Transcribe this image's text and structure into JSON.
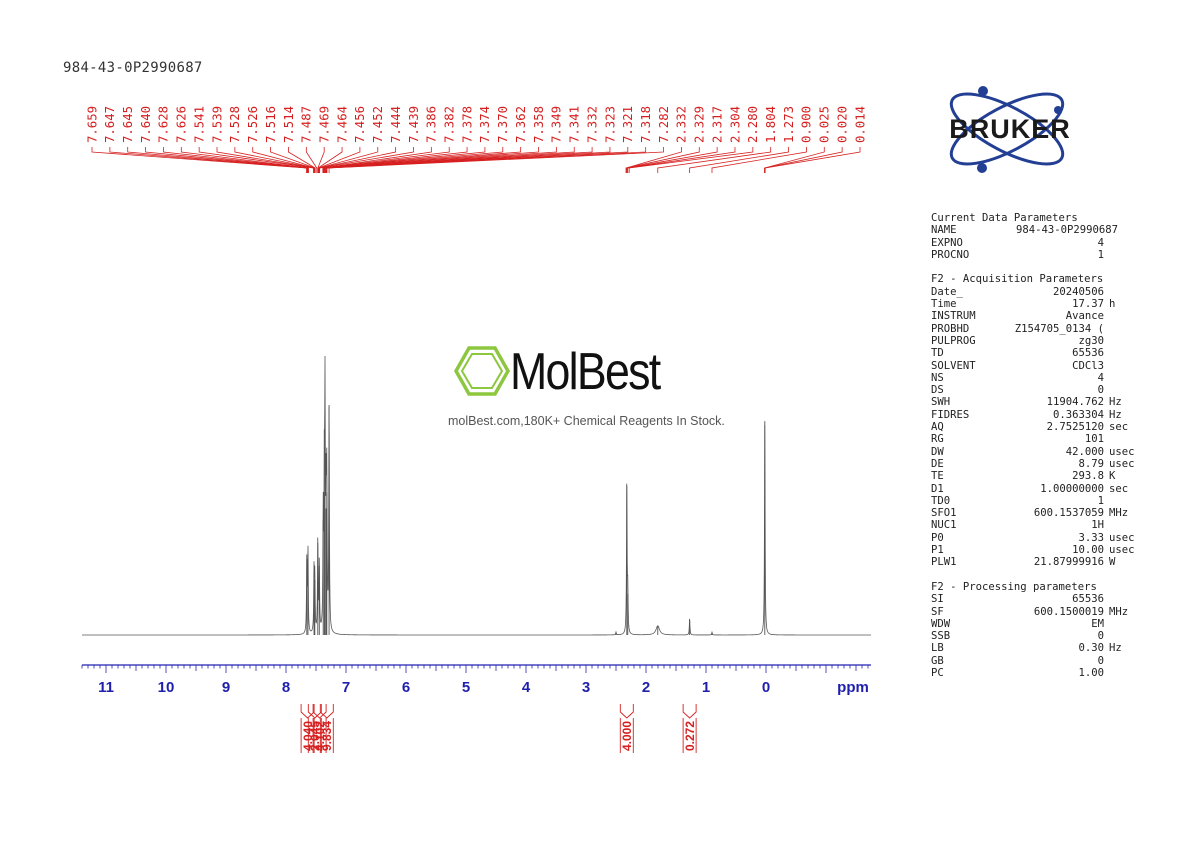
{
  "sample_id": "984-43-0P2990687",
  "logo": {
    "text": "BRUKER",
    "color": "#233f94",
    "accent": "#233f94"
  },
  "watermark": {
    "brand": "MolBest",
    "tagline": "molBest.com,180K+ Chemical Reagents In Stock.",
    "icon": "benzene-ring-icon",
    "icon_color": "#8dc63f"
  },
  "parameters": [
    {
      "title": "Current Data Parameters",
      "rows": [
        {
          "k": "NAME",
          "v": "984-43-0P2990687",
          "u": ""
        },
        {
          "k": "EXPNO",
          "v": "4",
          "u": ""
        },
        {
          "k": "PROCNO",
          "v": "1",
          "u": ""
        }
      ]
    },
    {
      "title": "F2 - Acquisition Parameters",
      "rows": [
        {
          "k": "Date_",
          "v": "20240506",
          "u": ""
        },
        {
          "k": "Time",
          "v": "17.37",
          "u": "h"
        },
        {
          "k": "INSTRUM",
          "v": "Avance",
          "u": ""
        },
        {
          "k": "PROBHD",
          "v": "Z154705_0134 (",
          "u": ""
        },
        {
          "k": "PULPROG",
          "v": "zg30",
          "u": ""
        },
        {
          "k": "TD",
          "v": "65536",
          "u": ""
        },
        {
          "k": "SOLVENT",
          "v": "CDCl3",
          "u": ""
        },
        {
          "k": "NS",
          "v": "4",
          "u": ""
        },
        {
          "k": "DS",
          "v": "0",
          "u": ""
        },
        {
          "k": "SWH",
          "v": "11904.762",
          "u": "Hz"
        },
        {
          "k": "FIDRES",
          "v": "0.363304",
          "u": "Hz"
        },
        {
          "k": "AQ",
          "v": "2.7525120",
          "u": "sec"
        },
        {
          "k": "RG",
          "v": "101",
          "u": ""
        },
        {
          "k": "DW",
          "v": "42.000",
          "u": "usec"
        },
        {
          "k": "DE",
          "v": "8.79",
          "u": "usec"
        },
        {
          "k": "TE",
          "v": "293.8",
          "u": "K"
        },
        {
          "k": "D1",
          "v": "1.00000000",
          "u": "sec"
        },
        {
          "k": "TD0",
          "v": "1",
          "u": ""
        },
        {
          "k": "SFO1",
          "v": "600.1537059",
          "u": "MHz"
        },
        {
          "k": "NUC1",
          "v": "1H",
          "u": ""
        },
        {
          "k": "P0",
          "v": "3.33",
          "u": "usec"
        },
        {
          "k": "P1",
          "v": "10.00",
          "u": "usec"
        },
        {
          "k": "PLW1",
          "v": "21.87999916",
          "u": "W"
        }
      ]
    },
    {
      "title": "F2 - Processing parameters",
      "rows": [
        {
          "k": "SI",
          "v": "65536",
          "u": ""
        },
        {
          "k": "SF",
          "v": "600.1500019",
          "u": "MHz"
        },
        {
          "k": "WDW",
          "v": "EM",
          "u": ""
        },
        {
          "k": "SSB",
          "v": "0",
          "u": ""
        },
        {
          "k": "LB",
          "v": "0.30",
          "u": "Hz"
        },
        {
          "k": "GB",
          "v": "0",
          "u": ""
        },
        {
          "k": "PC",
          "v": "1.00",
          "u": ""
        }
      ]
    }
  ],
  "chart_data": {
    "type": "line",
    "xlabel": "ppm",
    "xlim": [
      11.4,
      -1.75
    ],
    "x_reversed": true,
    "x_ticks": [
      11,
      10,
      9,
      8,
      7,
      6,
      5,
      4,
      3,
      2,
      1,
      0
    ],
    "colors": {
      "spectrum": "#555555",
      "axis": "#2323b4",
      "tick_label": "#1f1fae",
      "peak_label": "#d62020",
      "integral": "#d62020"
    },
    "peak_labels": [
      "7.659",
      "7.647",
      "7.645",
      "7.640",
      "7.628",
      "7.626",
      "7.541",
      "7.539",
      "7.528",
      "7.526",
      "7.516",
      "7.514",
      "7.487",
      "7.469",
      "7.464",
      "7.456",
      "7.452",
      "7.444",
      "7.439",
      "7.386",
      "7.382",
      "7.378",
      "7.374",
      "7.370",
      "7.362",
      "7.358",
      "7.349",
      "7.341",
      "7.332",
      "7.323",
      "7.321",
      "7.318",
      "7.282",
      "2.332",
      "2.329",
      "2.317",
      "2.304",
      "2.280",
      "1.804",
      "1.273",
      "0.900",
      "0.025",
      "0.020",
      "0.014"
    ],
    "peaks": [
      {
        "x": 7.653,
        "h": 0.33
      },
      {
        "x": 7.634,
        "h": 0.36
      },
      {
        "x": 7.533,
        "h": 0.27
      },
      {
        "x": 7.52,
        "h": 0.24
      },
      {
        "x": 7.47,
        "h": 0.4
      },
      {
        "x": 7.445,
        "h": 0.3
      },
      {
        "x": 7.38,
        "h": 0.5
      },
      {
        "x": 7.362,
        "h": 0.62
      },
      {
        "x": 7.35,
        "h": 0.98
      },
      {
        "x": 7.332,
        "h": 0.55
      },
      {
        "x": 7.32,
        "h": 0.62
      },
      {
        "x": 7.282,
        "h": 1.0
      },
      {
        "x": 2.32,
        "h": 0.65
      },
      {
        "x": 2.304,
        "h": 0.18
      },
      {
        "x": 2.5,
        "h": 0.012
      },
      {
        "x": 1.804,
        "h": 0.04,
        "w": 0.035
      },
      {
        "x": 1.273,
        "h": 0.07
      },
      {
        "x": 0.9,
        "h": 0.012
      },
      {
        "x": 0.02,
        "h": 0.93
      }
    ],
    "integrals": [
      {
        "x": 7.64,
        "label": "4.040"
      },
      {
        "x": 7.52,
        "label": "2.045"
      },
      {
        "x": 7.44,
        "label": "4.102"
      },
      {
        "x": 7.32,
        "label": "9.834"
      },
      {
        "x": 2.32,
        "label": "4.000"
      },
      {
        "x": 1.273,
        "label": "0.272"
      }
    ]
  }
}
